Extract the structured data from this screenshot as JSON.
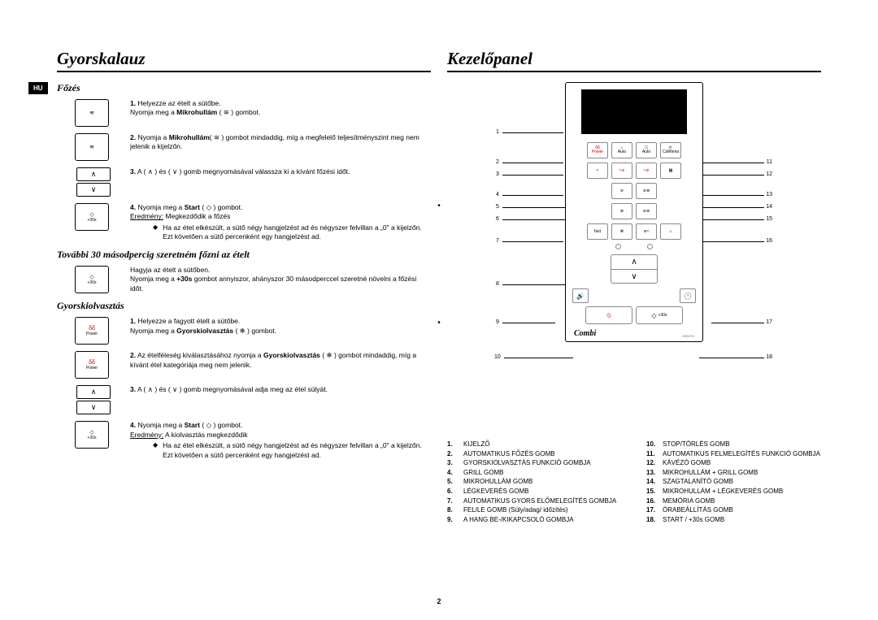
{
  "left": {
    "header": "Gyorskalauz",
    "hu": "HU",
    "section_cook": "Főzés",
    "cook_steps": [
      {
        "n": "1.",
        "text": "Helyezze az ételt a sütőbe.",
        "line2_a": "Nyomja meg a ",
        "line2_b": "Mikrohullám",
        "line2_c": " ( ≋ ) gombot.",
        "icon": "microwave"
      },
      {
        "n": "2.",
        "text_a": "Nyomja a ",
        "text_b": "Mikrohullám",
        "text_c": "( ≋ ) gombot mindaddig, míg a megfelelő teljesítményszint meg nem jelenik a kijelzőn.",
        "icon": "microwave"
      },
      {
        "n": "3.",
        "text": "A ( ∧ ) és ( ∨ ) gomb megnyomásával válassza ki a kívánt főzési időt.",
        "icon": "updown"
      },
      {
        "n": "4.",
        "text_a": "Nyomja meg a ",
        "text_b": "Start",
        "text_c": " ( ◇ ) gombot.",
        "result_label": "Eredmény:",
        "result_text": "  Megkezdődik a főzés",
        "bullet": "Ha az étel elkészült, a sütő négy hangjelzést ad és négyszer felvillan a „0\" a kijelzőn. Ezt követően a sütő percenként egy hangjelzést ad.",
        "icon": "start"
      }
    ],
    "section_30s": "További 30 másodpercig szeretném főzni az ételt",
    "s30_line1": "Hagyja az ételt a sütőben.",
    "s30_line2a": "Nyomja meg a ",
    "s30_line2b": "+30s",
    "s30_line2c": " gombot annyiszor, ahányszor 30 másodperccel szeretné növelni a főzési időt.",
    "section_defrost": "Gyorskiolvasztás",
    "defrost_steps": [
      {
        "n": "1.",
        "text": "Helyezze a fagyott ételt a sütőbe.",
        "line2_a": "Nyomja meg a ",
        "line2_b": "Gyorskiolvasztás",
        "line2_c": " ( ❄ ) gombot.",
        "icon": "defrost"
      },
      {
        "n": "2.",
        "text_a": "Az ételféleség kiválasztásához nyomja a ",
        "text_b": "Gyorskiolvasztás",
        "text_c": " ( ❄ ) gombot mindaddig, míg a kívánt étel kategóriája meg nem jelenik.",
        "icon": "defrost"
      },
      {
        "n": "3.",
        "text": "A ( ∧ ) és ( ∨ ) gomb megnyomásával adja meg az étel súlyát.",
        "icon": "updown"
      },
      {
        "n": "4.",
        "text_a": "Nyomja meg a ",
        "text_b": "Start",
        "text_c": " ( ◇ ) gombot.",
        "result_label": "Eredmény:",
        "result_text": "  A kiolvasztás megkezdődik",
        "bullet": "Ha az étel elkészült, a sütő négy hangjelzést ad és négyszer felvillan a „0\" a kijelzőn. Ezt követően a sütő percenként egy hangjelzést ad.",
        "icon": "start"
      }
    ],
    "start_label": "+30s",
    "defrost_label": "Power",
    "plus30_label": "+30s"
  },
  "right": {
    "header": "Kezelőpanel",
    "combi": "Combi",
    "model": "CE107V",
    "panel_labels": {
      "power": "Power",
      "auto1": "Auto",
      "auto2": "Auto",
      "cafe": "Caféteria",
      "plus30": "+30s"
    },
    "callouts_left": [
      "1",
      "2",
      "3",
      "4",
      "5",
      "6",
      "7",
      "8",
      "9",
      "10"
    ],
    "callouts_right": [
      "11",
      "12",
      "13",
      "14",
      "15",
      "16",
      "17",
      "18"
    ],
    "legend_left": [
      [
        "1.",
        "KIJELZŐ"
      ],
      [
        "2.",
        "AUTOMATIKUS FŐZÉS GOMB"
      ],
      [
        "3.",
        "GYORSKIOLVASZTÁS FUNKCIÓ GOMBJA"
      ],
      [
        "4.",
        "GRILL GOMB"
      ],
      [
        "5.",
        "MIKROHULLÁM GOMB"
      ],
      [
        "6.",
        "LÉGKEVERÉS GOMB"
      ],
      [
        "7.",
        "AUTOMATIKUS GYORS ELŐMELEGÍTÉS GOMBJA"
      ],
      [
        "8.",
        "FEL/LE GOMB (Súly/adag/ időzítés)"
      ],
      [
        "9.",
        "A HANG BE-/KIKAPCSOLÓ GOMBJA"
      ]
    ],
    "legend_right": [
      [
        "10.",
        "STOP/TÖRLÉS GOMB"
      ],
      [
        "11.",
        "AUTOMATIKUS FELMELEGÍTÉS FUNKCIÓ GOMBJA"
      ],
      [
        "12.",
        "KÁVÉZÓ GOMB"
      ],
      [
        "13.",
        "MIKROHULLÁM + GRILL GOMB"
      ],
      [
        "14.",
        "SZAGTALANÍTÓ GOMB"
      ],
      [
        "15.",
        "MIKROHULLÁM + LÉGKEVERÉS GOMB"
      ],
      [
        "16.",
        "MEMÓRIA GOMB"
      ],
      [
        "17.",
        "ÓRABEÁLLÍTÁS GOMB"
      ],
      [
        "18.",
        "START / +30s GOMB"
      ]
    ]
  },
  "page_number": "2"
}
